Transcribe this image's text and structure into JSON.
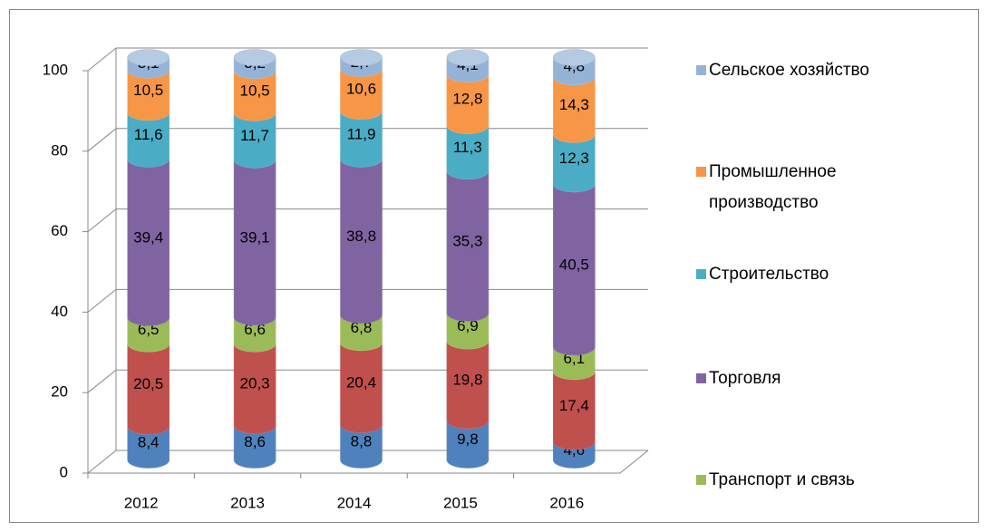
{
  "chart_data": {
    "type": "bar3d_stacked",
    "categories": [
      "2012",
      "2013",
      "2014",
      "2015",
      "2016"
    ],
    "ylim": [
      0,
      100
    ],
    "yticks": [
      0,
      20,
      40,
      60,
      80,
      100
    ],
    "grid": true,
    "series": [
      {
        "color": "#4f81bd",
        "values": [
          8.4,
          8.6,
          8.8,
          9.8,
          4.6
        ],
        "value_labels": [
          "8,4",
          "8,6",
          "8,8",
          "9,8",
          "4,6"
        ]
      },
      {
        "color": "#c0504d",
        "values": [
          20.5,
          20.3,
          20.4,
          19.8,
          17.4
        ],
        "value_labels": [
          "20,5",
          "20,3",
          "20,4",
          "19,8",
          "17,4"
        ]
      },
      {
        "name": "Транспорт и связь",
        "color": "#9bbb59",
        "values": [
          6.5,
          6.6,
          6.8,
          6.9,
          6.1
        ],
        "value_labels": [
          "6,5",
          "6,6",
          "6,8",
          "6,9",
          "6,1"
        ]
      },
      {
        "name": "Торговля",
        "color": "#8064a2",
        "values": [
          39.4,
          39.1,
          38.8,
          35.3,
          40.5
        ],
        "value_labels": [
          "39,4",
          "39,1",
          "38,8",
          "35,3",
          "40,5"
        ]
      },
      {
        "name": "Строительство",
        "color": "#4bacc6",
        "values": [
          11.6,
          11.7,
          11.9,
          11.3,
          12.3
        ],
        "value_labels": [
          "11,6",
          "11,7",
          "11,9",
          "11,3",
          "12,3"
        ]
      },
      {
        "name": "Промышленное производство",
        "color": "#f79646",
        "values": [
          10.5,
          10.5,
          10.6,
          12.8,
          14.3
        ],
        "value_labels": [
          "10,5",
          "10,5",
          "10,6",
          "12,8",
          "14,3"
        ]
      },
      {
        "name": "Сельское хозяйство",
        "color": "#95b3d7",
        "values": [
          3.1,
          3.2,
          2.7,
          4.1,
          4.8
        ],
        "value_labels": [
          "3,1",
          "3,2",
          "2,7",
          "4,1",
          "4,8"
        ]
      }
    ]
  }
}
